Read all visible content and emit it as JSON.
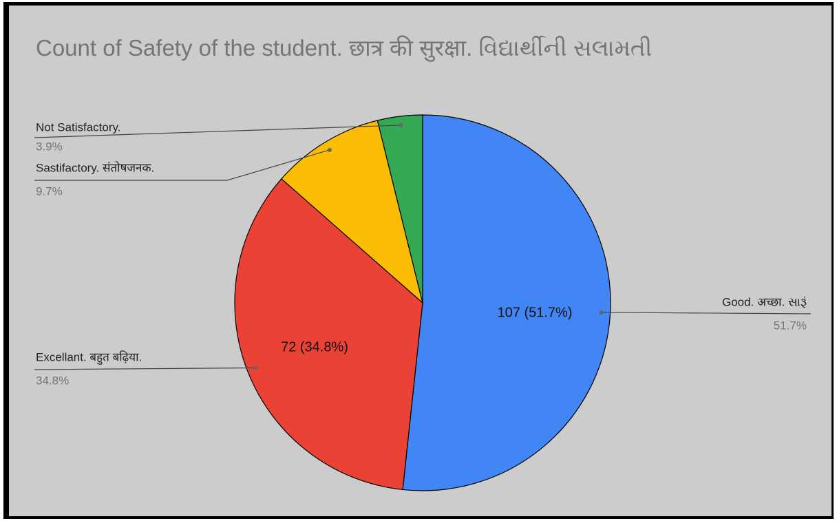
{
  "chart_data": {
    "type": "pie",
    "title": "Count of Safety of the student.  छात्र की सुरक्षा.  વિદ્યાર્થીની સલામતી",
    "categories": [
      "Good. अच्छा. સારૂં",
      "Excellant. बहुत बढ़िया.",
      "Sastifactory. संतोषजनक.",
      "Not Satisfactory."
    ],
    "values": [
      107,
      72,
      20,
      8
    ],
    "value_labels": [
      "107 (51.7%)",
      "72 (34.8%)",
      null,
      null
    ],
    "percent_labels": [
      "51.7%",
      "34.8%",
      "9.7%",
      "3.9%"
    ],
    "colors": [
      "#4285f4",
      "#ea4335",
      "#fbbc04",
      "#34a853"
    ]
  }
}
